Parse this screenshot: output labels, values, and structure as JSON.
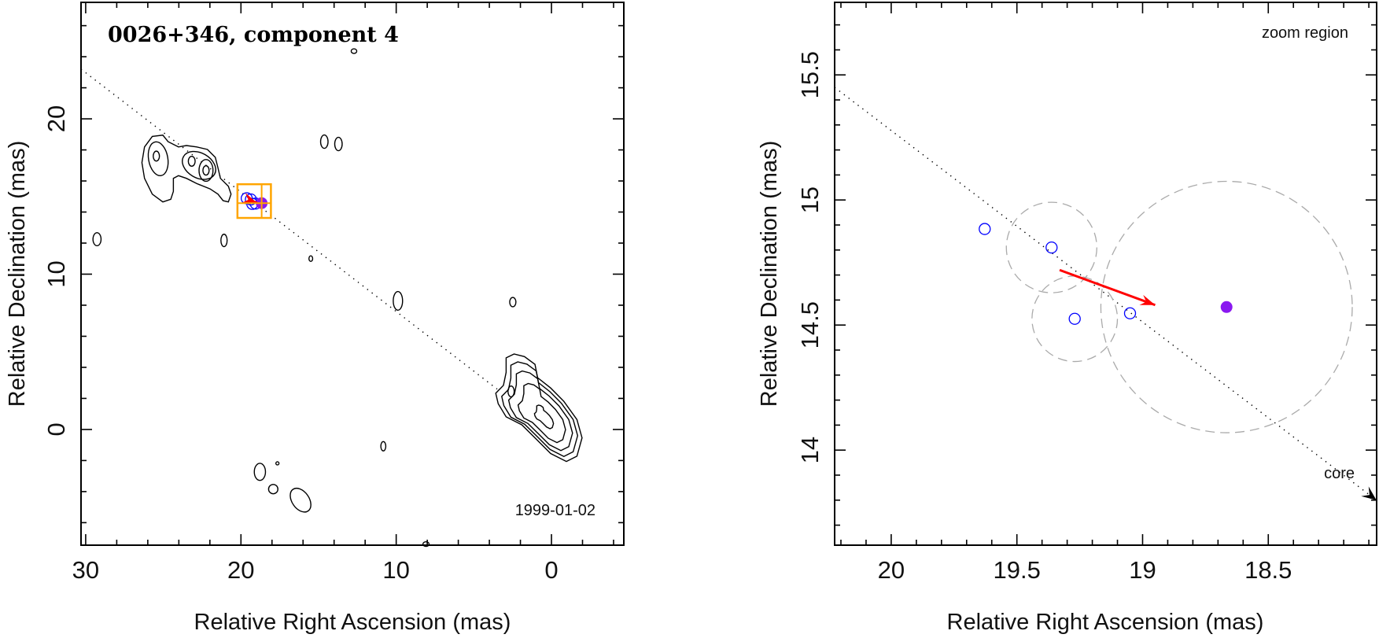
{
  "chart_data": [
    {
      "type": "contour-map",
      "title": "0026+346, component 4",
      "annotation": "1999-01-02",
      "xlabel": "Relative Right Ascension (mas)",
      "ylabel": "Relative Declination (mas)",
      "xlim": [
        30.3,
        -4.66
      ],
      "ylim": [
        -7.45,
        27.5
      ],
      "xticks": [
        "30",
        "20",
        "10",
        "0"
      ],
      "yticks": [
        "0",
        "10",
        "20"
      ],
      "grid": false,
      "colors": {
        "contour": "#000000",
        "component": "#0000ff",
        "current": "#8a19f0",
        "velocity": "#ff0000",
        "zoom_box": "#ffa500"
      },
      "jet_axis": [
        [
          30.3,
          23.2
        ],
        [
          3.5,
          2.6
        ]
      ],
      "core_peak": [
        0.39,
        0.64
      ],
      "core_contour": [
        [
          2.92,
          4.61
        ],
        [
          2.41,
          4.86
        ],
        [
          1.74,
          4.69
        ],
        [
          1.06,
          4.19
        ],
        [
          0.9,
          3.34
        ],
        [
          0.05,
          2.67
        ],
        [
          -0.79,
          1.82
        ],
        [
          -1.64,
          0.64
        ],
        [
          -1.97,
          -0.54
        ],
        [
          -1.64,
          -1.72
        ],
        [
          -0.96,
          -2.06
        ],
        [
          0.05,
          -1.55
        ],
        [
          1.06,
          -0.54
        ],
        [
          1.91,
          0.3
        ],
        [
          2.92,
          0.81
        ],
        [
          3.43,
          1.66
        ],
        [
          3.59,
          2.33
        ],
        [
          3.09,
          2.84
        ],
        [
          2.92,
          3.68
        ]
      ],
      "jet_contour": [
        [
          26.21,
          18.19
        ],
        [
          25.71,
          18.87
        ],
        [
          25.03,
          18.95
        ],
        [
          24.69,
          18.53
        ],
        [
          24.02,
          18.19
        ],
        [
          23.51,
          18.28
        ],
        [
          22.84,
          18.19
        ],
        [
          22.16,
          18.03
        ],
        [
          21.65,
          17.52
        ],
        [
          21.48,
          16.84
        ],
        [
          21.32,
          16.17
        ],
        [
          20.81,
          15.66
        ],
        [
          20.64,
          15.15
        ],
        [
          20.81,
          14.65
        ],
        [
          21.15,
          14.73
        ],
        [
          21.48,
          15.15
        ],
        [
          21.99,
          15.49
        ],
        [
          22.84,
          15.83
        ],
        [
          23.51,
          16.17
        ],
        [
          24.02,
          16.34
        ],
        [
          24.35,
          16.17
        ],
        [
          24.35,
          15.33
        ],
        [
          24.52,
          14.82
        ],
        [
          25.03,
          14.65
        ],
        [
          25.71,
          15.15
        ],
        [
          26.21,
          16.17
        ],
        [
          26.38,
          17.18
        ]
      ],
      "contour_ellipses": [
        {
          "ra": 25.33,
          "dec": 17.43,
          "a": 0.62,
          "b": 1.1,
          "tilt": -10
        },
        {
          "ra": 25.45,
          "dec": 17.6,
          "a": 0.2,
          "b": 0.32,
          "tilt": 0
        },
        {
          "ra": 22.7,
          "dec": 17.0,
          "a": 1.15,
          "b": 0.8,
          "tilt": 30
        },
        {
          "ra": 23.17,
          "dec": 17.27,
          "a": 0.22,
          "b": 0.32,
          "tilt": 0
        },
        {
          "ra": 22.25,
          "dec": 16.68,
          "a": 0.45,
          "b": 0.7,
          "tilt": 0
        },
        {
          "ra": 22.25,
          "dec": 16.68,
          "a": 0.2,
          "b": 0.3,
          "tilt": 0
        },
        {
          "ra": 2.6,
          "dec": 2.45,
          "a": 0.2,
          "b": 0.35,
          "tilt": 0
        },
        {
          "ra": 14.63,
          "dec": 18.53,
          "a": 0.24,
          "b": 0.43,
          "tilt": 0
        },
        {
          "ra": 13.72,
          "dec": 18.38,
          "a": 0.24,
          "b": 0.43,
          "tilt": 0
        },
        {
          "ra": 29.27,
          "dec": 12.25,
          "a": 0.26,
          "b": 0.42,
          "tilt": 0
        },
        {
          "ra": 21.09,
          "dec": 12.17,
          "a": 0.2,
          "b": 0.4,
          "tilt": 0
        },
        {
          "ra": 15.5,
          "dec": 11.0,
          "a": 0.12,
          "b": 0.18,
          "tilt": 0
        },
        {
          "ra": 9.89,
          "dec": 8.28,
          "a": 0.3,
          "b": 0.6,
          "tilt": 0
        },
        {
          "ra": 2.49,
          "dec": 8.2,
          "a": 0.2,
          "b": 0.3,
          "tilt": 0
        },
        {
          "ra": 10.83,
          "dec": -1.08,
          "a": 0.16,
          "b": 0.3,
          "tilt": 0
        },
        {
          "ra": 18.78,
          "dec": -2.73,
          "a": 0.36,
          "b": 0.55,
          "tilt": 0
        },
        {
          "ra": 17.65,
          "dec": -2.18,
          "a": 0.1,
          "b": 0.1,
          "tilt": 0
        },
        {
          "ra": 17.92,
          "dec": -3.84,
          "a": 0.3,
          "b": 0.3,
          "tilt": 0
        },
        {
          "ra": 16.16,
          "dec": -4.55,
          "a": 0.55,
          "b": 0.85,
          "tilt": -35
        },
        {
          "ra": 12.72,
          "dec": 24.36,
          "a": 0.18,
          "b": 0.15,
          "tilt": 0
        },
        {
          "ra": 8.08,
          "dec": -7.38,
          "a": 0.2,
          "b": 0.15,
          "tilt": 0
        }
      ],
      "zoom_box": {
        "ra": [
          20.225,
          18.069
        ],
        "dec": [
          13.62,
          15.79
        ]
      },
      "crosshair": [
        18.666,
        14.572
      ]
    },
    {
      "type": "scatter",
      "annotation": "zoom region",
      "core_label": "core",
      "xlabel": "Relative Right Ascension (mas)",
      "ylabel": "Relative Declination (mas)",
      "xlim": [
        20.225,
        18.069
      ],
      "ylim": [
        13.62,
        15.79
      ],
      "xticks": [
        "20",
        "19.5",
        "19",
        "18.5"
      ],
      "yticks": [
        "14",
        "14.5",
        "15",
        "15.5"
      ],
      "grid": false,
      "jet_axis": [
        [
          20.225,
          15.45
        ],
        [
          18.07,
          13.8
        ]
      ],
      "component_positions": [
        {
          "ra": 19.628,
          "dec": 14.884,
          "error_radius": null
        },
        {
          "ra": 19.362,
          "dec": 14.81,
          "error_radius": 0.18
        },
        {
          "ra": 19.27,
          "dec": 14.525,
          "error_radius": 0.17
        },
        {
          "ra": 19.05,
          "dec": 14.547,
          "error_radius": null
        }
      ],
      "current_position": {
        "ra": 18.666,
        "dec": 14.572,
        "error_radius": 0.5
      },
      "velocity_arrow": {
        "from": [
          19.33,
          14.72
        ],
        "to": [
          18.95,
          14.58
        ]
      }
    }
  ]
}
